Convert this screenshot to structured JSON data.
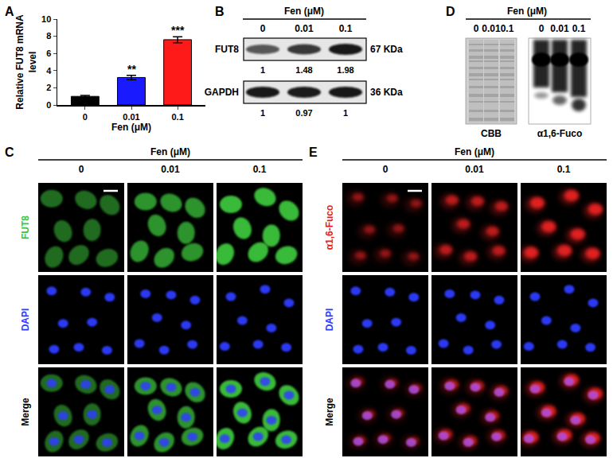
{
  "chart_data": {
    "type": "bar",
    "label": "A",
    "categories": [
      "0",
      "0.01",
      "0.1"
    ],
    "values": [
      1,
      3.2,
      7.6
    ],
    "errors": [
      0.1,
      0.25,
      0.35
    ],
    "colors": [
      "#000000",
      "#1a1aff",
      "#ff1a1a"
    ],
    "x_label": "Fen (μM)",
    "y_label": "Relative FUT8 mRNA level",
    "ylim": [
      0,
      10
    ],
    "yticks": [
      0,
      2,
      4,
      6,
      8,
      10
    ],
    "annotations": [
      {
        "category": "0.01",
        "text": "**"
      },
      {
        "category": "0.1",
        "text": "***"
      }
    ]
  },
  "panels": {
    "B": {
      "label": "B",
      "title": "Fen (μM)",
      "doses": [
        "0",
        "0.01",
        "0.1"
      ],
      "rows": [
        {
          "name": "FUT8",
          "size": "67 KDa",
          "values": [
            1,
            1.48,
            1.98
          ]
        },
        {
          "name": "GAPDH",
          "size": "36 KDa",
          "values": [
            1,
            0.97,
            1
          ]
        }
      ]
    },
    "C": {
      "label": "C",
      "title": "Fen (μM)",
      "doses": [
        "0",
        "0.01",
        "0.1"
      ],
      "rows": [
        "FUT8",
        "DAPI",
        "Merge"
      ],
      "color": "#3cc43c"
    },
    "D": {
      "label": "D",
      "title": "Fen (μM)",
      "doses": [
        "0",
        "0.01",
        "0.1"
      ],
      "panels": [
        "CBB",
        "α1,6-Fuco"
      ]
    },
    "E": {
      "label": "E",
      "title": "Fen (μM)",
      "doses": [
        "0",
        "0.01",
        "0.1"
      ],
      "rows": [
        "α1,6-Fuco",
        "DAPI",
        "Merge"
      ],
      "color": "#e82020"
    }
  }
}
